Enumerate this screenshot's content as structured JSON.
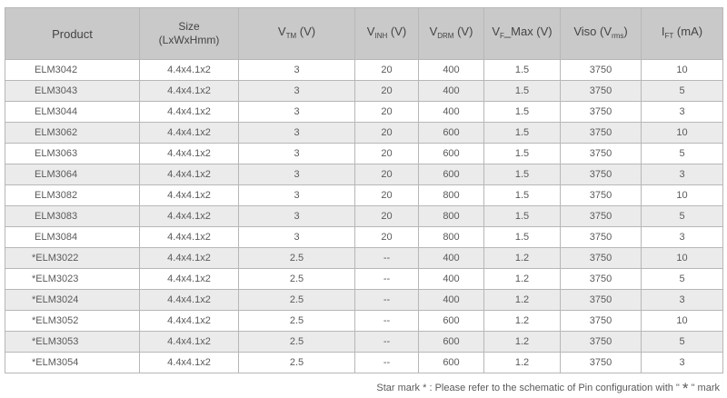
{
  "headers": {
    "product": "Product",
    "size_line1": "Size",
    "size_line2": "(LxWxHmm)",
    "vtm_main": "V",
    "vtm_sub": "TM",
    "vtm_unit": " (V)",
    "vinh_main": "V",
    "vinh_sub": "INH",
    "vinh_unit": " (V)",
    "vdrm_main": "V",
    "vdrm_sub": "DRM",
    "vdrm_unit": " (V)",
    "vf_main": "V",
    "vf_sub": "F",
    "vf_unit": "_Max (V)",
    "viso_main": "Viso (V",
    "viso_sub": "rms",
    "viso_unit": ")",
    "ift_main": "I",
    "ift_sub": "FT",
    "ift_unit": " (mA)"
  },
  "rows": [
    [
      "ELM3042",
      "4.4x4.1x2",
      "3",
      "20",
      "400",
      "1.5",
      "3750",
      "10"
    ],
    [
      "ELM3043",
      "4.4x4.1x2",
      "3",
      "20",
      "400",
      "1.5",
      "3750",
      "5"
    ],
    [
      "ELM3044",
      "4.4x4.1x2",
      "3",
      "20",
      "400",
      "1.5",
      "3750",
      "3"
    ],
    [
      "ELM3062",
      "4.4x4.1x2",
      "3",
      "20",
      "600",
      "1.5",
      "3750",
      "10"
    ],
    [
      "ELM3063",
      "4.4x4.1x2",
      "3",
      "20",
      "600",
      "1.5",
      "3750",
      "5"
    ],
    [
      "ELM3064",
      "4.4x4.1x2",
      "3",
      "20",
      "600",
      "1.5",
      "3750",
      "3"
    ],
    [
      "ELM3082",
      "4.4x4.1x2",
      "3",
      "20",
      "800",
      "1.5",
      "3750",
      "10"
    ],
    [
      "ELM3083",
      "4.4x4.1x2",
      "3",
      "20",
      "800",
      "1.5",
      "3750",
      "5"
    ],
    [
      "ELM3084",
      "4.4x4.1x2",
      "3",
      "20",
      "800",
      "1.5",
      "3750",
      "3"
    ],
    [
      "*ELM3022",
      "4.4x4.1x2",
      "2.5",
      "--",
      "400",
      "1.2",
      "3750",
      "10"
    ],
    [
      "*ELM3023",
      "4.4x4.1x2",
      "2.5",
      "--",
      "400",
      "1.2",
      "3750",
      "5"
    ],
    [
      "*ELM3024",
      "4.4x4.1x2",
      "2.5",
      "--",
      "400",
      "1.2",
      "3750",
      "3"
    ],
    [
      "*ELM3052",
      "4.4x4.1x2",
      "2.5",
      "--",
      "600",
      "1.2",
      "3750",
      "10"
    ],
    [
      "*ELM3053",
      "4.4x4.1x2",
      "2.5",
      "--",
      "600",
      "1.2",
      "3750",
      "5"
    ],
    [
      "*ELM3054",
      "4.4x4.1x2",
      "2.5",
      "--",
      "600",
      "1.2",
      "3750",
      "3"
    ]
  ],
  "footnote": {
    "prefix": "Star mark",
    "star1": "*",
    "middle": " : Please refer to the schematic of Pin configuration with \" ",
    "star2": "*",
    "suffix": " \" mark"
  }
}
